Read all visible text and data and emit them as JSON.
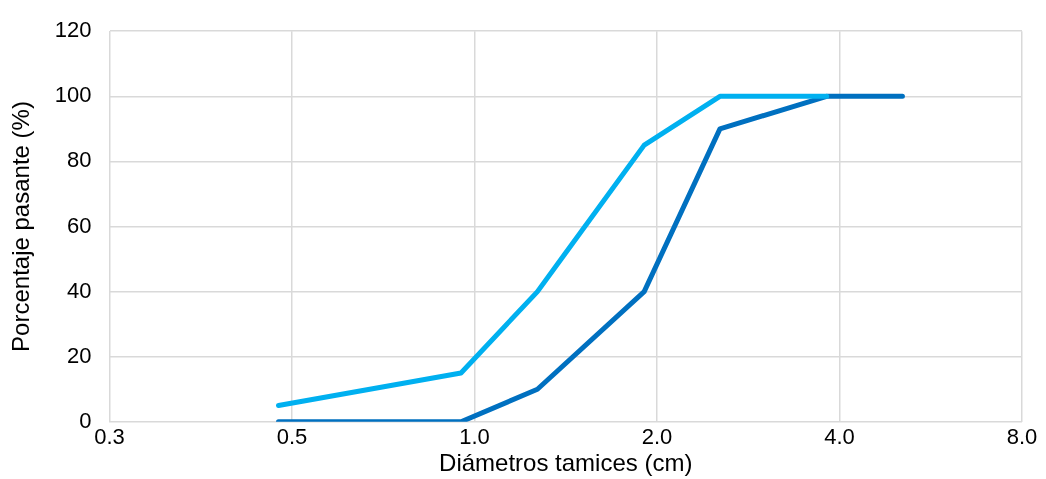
{
  "chart_data": {
    "type": "line",
    "xlabel": "Diámetros tamices (cm)",
    "ylabel": "Porcentaje pasante (%)",
    "log": "x",
    "xlim": [
      0.25,
      8
    ],
    "xticks": [
      {
        "value": 0.25,
        "label": "0.3"
      },
      {
        "value": 0.5,
        "label": "0.5"
      },
      {
        "value": 1,
        "label": "1.0"
      },
      {
        "value": 2,
        "label": "2.0"
      },
      {
        "value": 4,
        "label": "4.0"
      },
      {
        "value": 8,
        "label": "8.0"
      }
    ],
    "ylim": [
      0,
      120
    ],
    "yticks": [
      0,
      20,
      40,
      60,
      80,
      100,
      120
    ],
    "grid": true,
    "legend": false,
    "marker": "none",
    "line_style": "solid",
    "series": [
      {
        "color": "#00b0f0",
        "x": [
          0.475,
          0.95,
          1.27,
          1.905,
          2.54,
          3.81
        ],
        "values": [
          5,
          15,
          40,
          85,
          100,
          100
        ]
      },
      {
        "color": "#0070c0",
        "x": [
          0.475,
          0.95,
          1.27,
          1.905,
          2.54,
          3.81,
          5.08
        ],
        "values": [
          0,
          0,
          10,
          40,
          90,
          100,
          100
        ]
      }
    ]
  }
}
